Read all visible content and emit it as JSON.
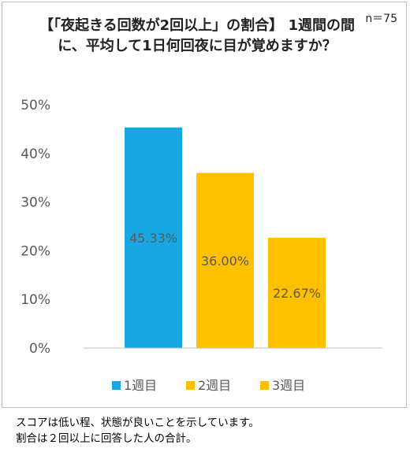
{
  "chart_data": {
    "type": "bar",
    "title": "【「夜起きる回数が2回以上」の割合】 1週間の間に、平均して1日何回夜に目が覚めますか？",
    "sample_label": "n＝75",
    "categories": [
      "1週目",
      "2週目",
      "3週目"
    ],
    "values": [
      45.33,
      36.0,
      22.67
    ],
    "data_labels": [
      "45.33%",
      "36.00%",
      "22.67%"
    ],
    "y_ticks": [
      "0%",
      "10%",
      "20%",
      "30%",
      "40%",
      "50%"
    ],
    "ylim": [
      0,
      50
    ],
    "grid": false,
    "legend_position": "bottom",
    "colors": [
      "#17a8e3",
      "#ffc000",
      "#ffc000"
    ]
  },
  "notes": [
    "スコアは低い程、状態が良いことを示しています。",
    "割合は２回以上に回答した人の合計。"
  ]
}
